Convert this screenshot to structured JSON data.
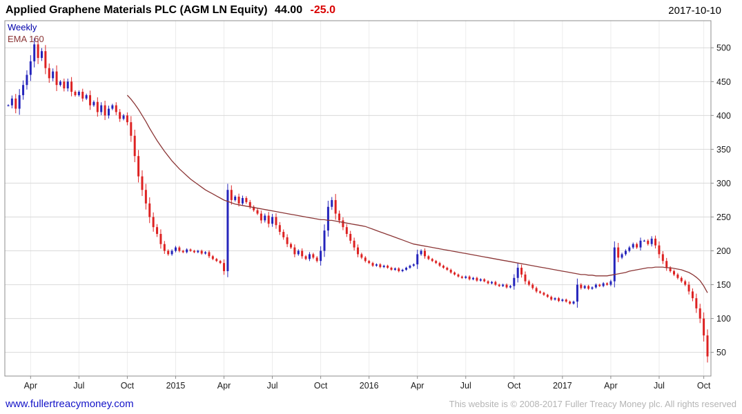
{
  "header": {
    "title": "Applied Graphene Materials PLC (AGM LN Equity)",
    "price": "44.00",
    "change": "-25.0",
    "date": "2017-10-10"
  },
  "legend": {
    "timeframe": "Weekly",
    "ema_label": "EMA 160"
  },
  "footer": {
    "site": "www.fullertreacymoney.com",
    "copyright": "This website is © 2008-2017 Fuller Treacy Money plc. All rights reserved"
  },
  "colors": {
    "candle_up": "#2424bb",
    "candle_down": "#dd2222",
    "ema_line": "#8b3535",
    "grid_horizontal": "#d9d9d9",
    "grid_vertical": "#ececec",
    "plot_border": "#8c8c8c",
    "axis": "#8c8c8c",
    "title_text": "#000000",
    "change_text": "#d90000",
    "timeframe_text": "#0000aa",
    "link_text": "#1414c8",
    "copyright_text": "#b4b4b4"
  },
  "chart_data": {
    "type": "candlestick",
    "title": "Applied Graphene Materials PLC (AGM LN Equity)",
    "timeframe": "Weekly",
    "overlay": "EMA 160",
    "last_price": 44.0,
    "change": -25.0,
    "date": "2017-10-10",
    "ylim": [
      15,
      540
    ],
    "yticks": [
      50,
      100,
      150,
      200,
      250,
      300,
      350,
      400,
      450,
      500
    ],
    "xticks": [
      {
        "label": "Apr",
        "index": 6
      },
      {
        "label": "Jul",
        "index": 19
      },
      {
        "label": "Oct",
        "index": 32
      },
      {
        "label": "2015",
        "index": 45
      },
      {
        "label": "Apr",
        "index": 58
      },
      {
        "label": "Jul",
        "index": 71
      },
      {
        "label": "Oct",
        "index": 84
      },
      {
        "label": "2016",
        "index": 97
      },
      {
        "label": "Apr",
        "index": 110
      },
      {
        "label": "Jul",
        "index": 123
      },
      {
        "label": "Oct",
        "index": 136
      },
      {
        "label": "2017",
        "index": 149
      },
      {
        "label": "Apr",
        "index": 162
      },
      {
        "label": "Jul",
        "index": 175
      },
      {
        "label": "Oct",
        "index": 187
      }
    ],
    "closes": [
      415,
      425,
      410,
      430,
      445,
      460,
      480,
      505,
      485,
      495,
      470,
      455,
      465,
      445,
      450,
      440,
      450,
      435,
      430,
      435,
      425,
      430,
      415,
      420,
      405,
      415,
      400,
      410,
      415,
      405,
      395,
      400,
      390,
      370,
      340,
      310,
      290,
      270,
      250,
      235,
      225,
      210,
      200,
      195,
      200,
      205,
      200,
      198,
      202,
      200,
      198,
      200,
      196,
      198,
      192,
      188,
      185,
      182,
      170,
      290,
      275,
      280,
      270,
      278,
      272,
      265,
      260,
      255,
      245,
      252,
      240,
      250,
      238,
      228,
      220,
      210,
      205,
      195,
      200,
      192,
      188,
      195,
      190,
      185,
      200,
      230,
      265,
      275,
      255,
      245,
      235,
      225,
      215,
      205,
      195,
      190,
      185,
      182,
      178,
      180,
      176,
      178,
      175,
      172,
      174,
      170,
      172,
      175,
      178,
      180,
      195,
      200,
      192,
      188,
      185,
      182,
      178,
      175,
      172,
      168,
      165,
      162,
      160,
      162,
      158,
      160,
      156,
      158,
      155,
      152,
      154,
      150,
      148,
      150,
      146,
      148,
      160,
      175,
      165,
      155,
      150,
      145,
      140,
      138,
      135,
      132,
      128,
      130,
      126,
      128,
      125,
      122,
      125,
      150,
      145,
      148,
      144,
      146,
      150,
      148,
      152,
      150,
      155,
      205,
      190,
      195,
      200,
      205,
      210,
      205,
      215,
      215,
      210,
      218,
      208,
      195,
      185,
      175,
      170,
      165,
      160,
      155,
      150,
      140,
      130,
      115,
      100,
      75,
      44
    ],
    "ema160": {
      "start_index": 32,
      "values": [
        430,
        424,
        417,
        409,
        400,
        391,
        381,
        372,
        363,
        355,
        347,
        340,
        333,
        327,
        321,
        316,
        311,
        306,
        302,
        298,
        294,
        290,
        287,
        284,
        281,
        278,
        275,
        273,
        271,
        269,
        268,
        267,
        266,
        265,
        264,
        263,
        262,
        261,
        260,
        259,
        258,
        257,
        256,
        255,
        254,
        253,
        252,
        251,
        250,
        249,
        248,
        247,
        246,
        246,
        245,
        245,
        244,
        243,
        242,
        241,
        240,
        239,
        238,
        237,
        236,
        234,
        232,
        230,
        228,
        226,
        224,
        222,
        220,
        218,
        216,
        214,
        212,
        210,
        209,
        208,
        207,
        206,
        205,
        204,
        203,
        202,
        201,
        200,
        199,
        198,
        197,
        196,
        195,
        194,
        193,
        192,
        191,
        190,
        189,
        188,
        187,
        186,
        185,
        184,
        183,
        182,
        181,
        180,
        179,
        178,
        177,
        176,
        175,
        174,
        173,
        172,
        171,
        170,
        169,
        168,
        167,
        166,
        165,
        165,
        164,
        164,
        163,
        163,
        163,
        163,
        164,
        165,
        166,
        167,
        168,
        170,
        171,
        172,
        173,
        174,
        175,
        175,
        176,
        176,
        176,
        175,
        175,
        174,
        173,
        172,
        170,
        168,
        165,
        161,
        156,
        148,
        138
      ]
    }
  }
}
